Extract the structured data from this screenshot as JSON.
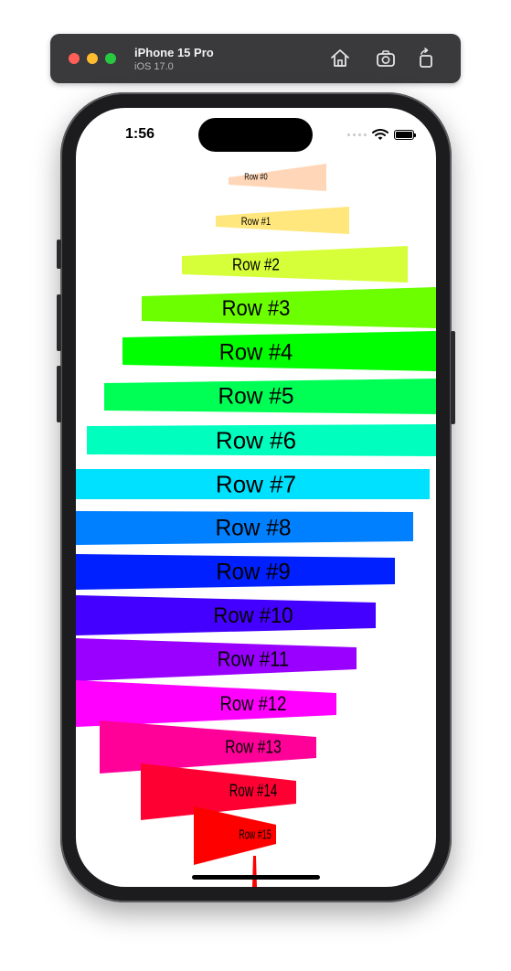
{
  "simulator": {
    "device_name": "iPhone 15 Pro",
    "os_version": "iOS 17.0"
  },
  "status_bar": {
    "time": "1:56"
  },
  "rows": [
    {
      "label": "Row #0",
      "color": "#ffd7b8"
    },
    {
      "label": "Row #1",
      "color": "#ffe77d"
    },
    {
      "label": "Row #2",
      "color": "#d6ff39"
    },
    {
      "label": "Row #3",
      "color": "#6bff00"
    },
    {
      "label": "Row #4",
      "color": "#00ff00"
    },
    {
      "label": "Row #5",
      "color": "#00ff55"
    },
    {
      "label": "Row #6",
      "color": "#00ffbf"
    },
    {
      "label": "Row #7",
      "color": "#00e1ff"
    },
    {
      "label": "Row #8",
      "color": "#0080ff"
    },
    {
      "label": "Row #9",
      "color": "#0020ff"
    },
    {
      "label": "Row #10",
      "color": "#4400ff"
    },
    {
      "label": "Row #11",
      "color": "#9900ff"
    },
    {
      "label": "Row #12",
      "color": "#ff00ff"
    },
    {
      "label": "Row #13",
      "color": "#ff0099"
    },
    {
      "label": "Row #14",
      "color": "#ff0033"
    },
    {
      "label": "Row #15",
      "color": "#ff0000"
    }
  ]
}
